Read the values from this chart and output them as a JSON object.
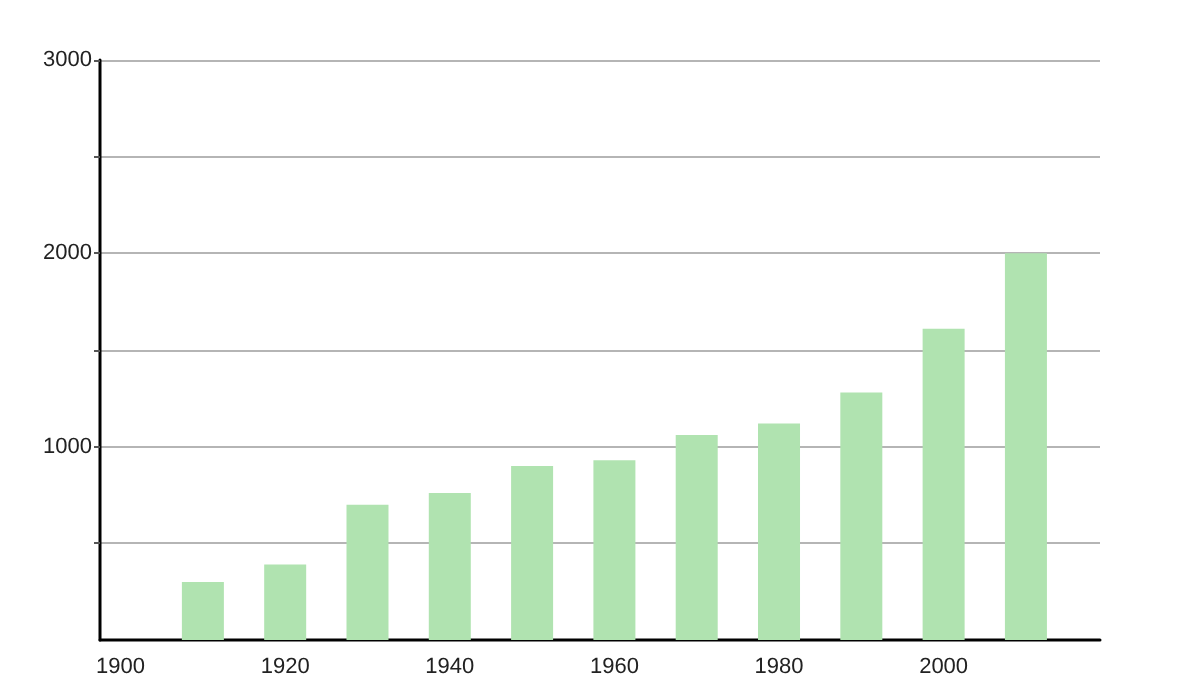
{
  "chart_data": {
    "type": "bar",
    "x": [
      1910,
      1920,
      1930,
      1940,
      1950,
      1960,
      1970,
      1980,
      1990,
      2000,
      2010
    ],
    "values": [
      300,
      390,
      700,
      760,
      900,
      930,
      1060,
      1120,
      1280,
      1610,
      2000
    ],
    "color": "#b0e3b0",
    "xlim": [
      1897.5,
      2019
    ],
    "xticks": [
      1900,
      1920,
      1940,
      1960,
      1980,
      2000
    ],
    "ylim": [
      0,
      3000
    ],
    "yticks": [
      {
        "value": 500,
        "label": null
      },
      1000,
      {
        "value": 1500,
        "label": null
      },
      2000,
      {
        "value": 2500,
        "label": null
      },
      3000
    ],
    "grid": "y"
  }
}
